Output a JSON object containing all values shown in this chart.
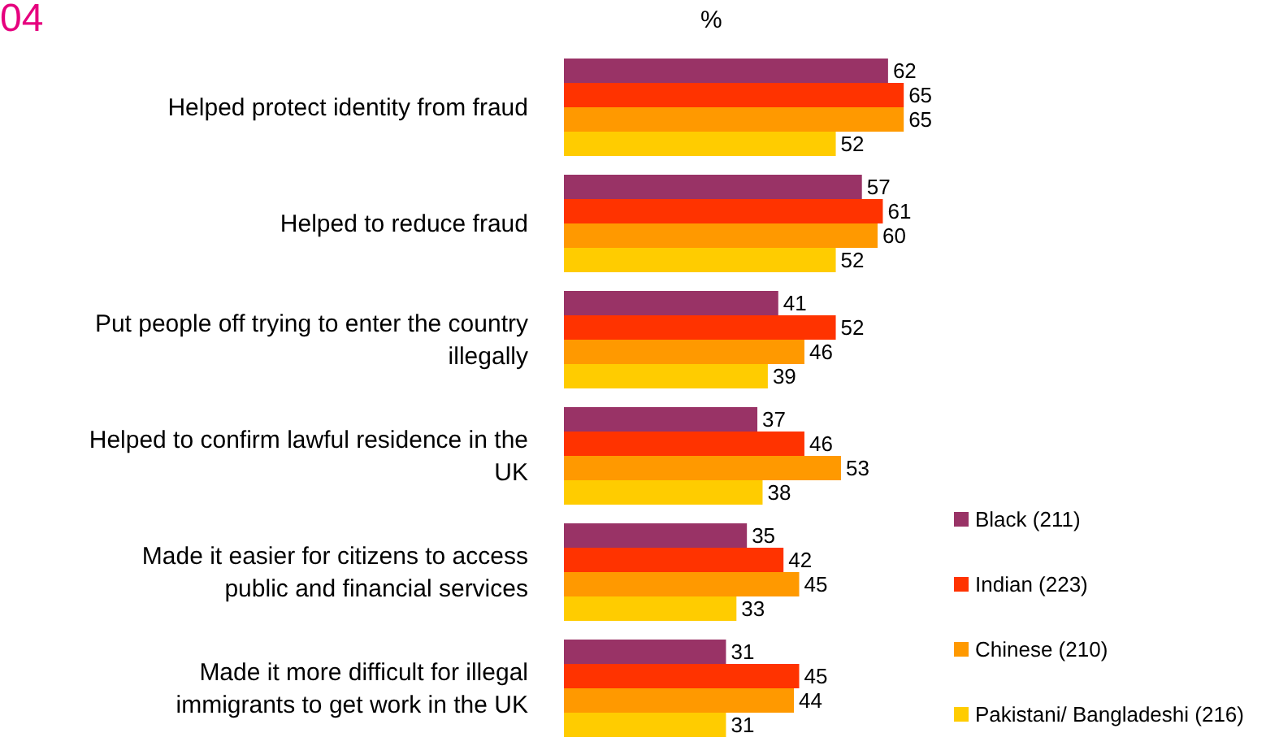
{
  "chart_data": {
    "type": "bar",
    "orientation": "horizontal",
    "title": "%",
    "annotations": [
      "04"
    ],
    "categories": [
      "Helped protect identity from fraud",
      "Helped to reduce fraud",
      "Put people off trying to enter the country illegally",
      "Helped to confirm lawful residence in the UK",
      "Made it easier for citizens to access public and financial services",
      "Made it more difficult for illegal immigrants to get work in the UK"
    ],
    "series": [
      {
        "name": "Black (211)",
        "color": "#993366",
        "values": [
          62,
          57,
          41,
          37,
          35,
          31
        ]
      },
      {
        "name": "Indian (223)",
        "color": "#ff3300",
        "values": [
          65,
          61,
          52,
          46,
          42,
          45
        ]
      },
      {
        "name": "Chinese (210)",
        "color": "#ff9900",
        "values": [
          65,
          60,
          46,
          53,
          45,
          44
        ]
      },
      {
        "name": "Pakistani/ Bangladeshi (216)",
        "color": "#ffcc00",
        "values": [
          52,
          52,
          39,
          38,
          33,
          31
        ]
      }
    ],
    "data_labels": true,
    "legend": "bottom right"
  }
}
